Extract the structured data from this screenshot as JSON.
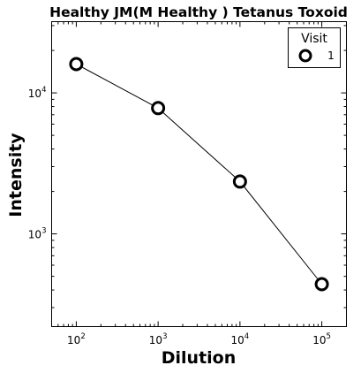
{
  "chart_data": {
    "type": "line",
    "title": "Healthy JM(M Healthy ) Tetanus Toxoid",
    "xlabel": "Dilution",
    "ylabel": "Intensity",
    "x_scale": "log",
    "y_scale": "log",
    "xlim": [
      50,
      200000
    ],
    "ylim": [
      220,
      32000
    ],
    "x_ticks": [
      {
        "value": 100,
        "base": "10",
        "exp": "2"
      },
      {
        "value": 1000,
        "base": "10",
        "exp": "3"
      },
      {
        "value": 10000,
        "base": "10",
        "exp": "4"
      },
      {
        "value": 100000,
        "base": "10",
        "exp": "5"
      }
    ],
    "y_ticks": [
      {
        "value": 1000,
        "base": "10",
        "exp": "3"
      },
      {
        "value": 10000,
        "base": "10",
        "exp": "4"
      }
    ],
    "grid": false,
    "legend": {
      "title": "Visit",
      "placement": "top-right"
    },
    "series": [
      {
        "name": "1",
        "marker": "open-circle",
        "color": "#000000",
        "x": [
          100,
          1000,
          10000,
          100000
        ],
        "y": [
          16000,
          7800,
          2350,
          440
        ]
      }
    ]
  }
}
